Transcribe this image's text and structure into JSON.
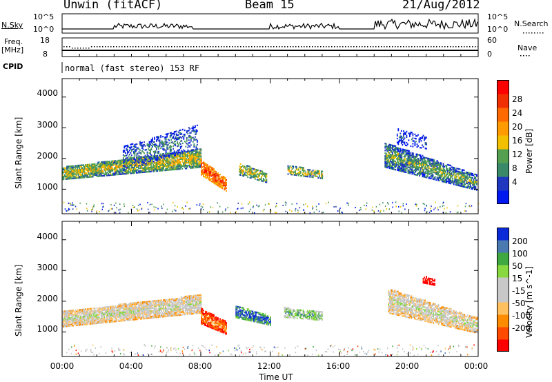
{
  "header": {
    "station": "Unwin (fitACF)",
    "beam": "Beam 15",
    "date": "21/Aug/2012"
  },
  "summary_panels": {
    "nsky_label": "N.Sky",
    "nsky_ticks": [
      "10^5",
      "10^0"
    ],
    "nsearch_label": "N.Search",
    "nsearch_ticks": [
      "10^5",
      "10^0"
    ],
    "freq_label": "Freq.",
    "freq_unit": "[MHz]",
    "freq_ticks": [
      "18",
      "8"
    ],
    "nave_label": "Nave",
    "nave_ticks": [
      "60",
      "0"
    ],
    "cpid_label": "CPID",
    "cpid_text": "normal (fast stereo) 153 RF"
  },
  "colors": {
    "power": [
      "#0018f0",
      "#2038c0",
      "#3a8a6a",
      "#54a050",
      "#f2c000",
      "#ff9a00",
      "#ff6a00",
      "#f03000",
      "#ff0000"
    ],
    "velocity": [
      "#ff0000",
      "#ff4a00",
      "#ff8c00",
      "#ffc060",
      "#c8c8c8",
      "#c8c8c8",
      "#88d840",
      "#40a840",
      "#4a7ab0",
      "#0a2ad8"
    ],
    "gray": "#c0c0c0"
  },
  "chart_data": [
    {
      "type": "heatmap",
      "parameter": "Power",
      "ylabel": "Slant Range [km]",
      "xlabel": "Time UT",
      "xlim": [
        0,
        24
      ],
      "ylim": [
        200,
        4600
      ],
      "x_ticks": [
        "00:00",
        "04:00",
        "08:00",
        "12:00",
        "16:00",
        "20:00",
        "00:00"
      ],
      "y_ticks": [
        "1000",
        "2000",
        "3000",
        "4000"
      ],
      "colorbar": {
        "label": "Power [dB]",
        "ticks": [
          "4",
          "8",
          "12",
          "16",
          "20",
          "24",
          "28"
        ]
      },
      "regions": [
        {
          "t": [
            0.0,
            8.0
          ],
          "r_center": [
            1500,
            2000
          ],
          "halfwidth": [
            200,
            300
          ],
          "density": 0.85,
          "core": 4
        },
        {
          "t": [
            3.5,
            7.8
          ],
          "r_center": [
            2000,
            2700
          ],
          "halfwidth": [
            400,
            400
          ],
          "density": 0.35,
          "core": 2
        },
        {
          "t": [
            8.0,
            9.5
          ],
          "r_center": [
            1700,
            1100
          ],
          "halfwidth": [
            250,
            200
          ],
          "density": 0.85,
          "core": 7
        },
        {
          "t": [
            10.2,
            11.8
          ],
          "r_center": [
            1650,
            1350
          ],
          "halfwidth": [
            200,
            150
          ],
          "density": 0.6,
          "core": 4
        },
        {
          "t": [
            13.0,
            15.0
          ],
          "r_center": [
            1620,
            1450
          ],
          "halfwidth": [
            150,
            120
          ],
          "density": 0.65,
          "core": 4
        },
        {
          "t": [
            18.6,
            23.9
          ],
          "r_center": [
            2100,
            1200
          ],
          "halfwidth": [
            400,
            250
          ],
          "density": 0.75,
          "core": 3
        },
        {
          "t": [
            19.3,
            21.0
          ],
          "r_center": [
            2700,
            2500
          ],
          "halfwidth": [
            250,
            200
          ],
          "density": 0.3,
          "core": 1
        }
      ]
    },
    {
      "type": "heatmap",
      "parameter": "Velocity",
      "ylabel": "Slant Range [km]",
      "xlabel": "Time UT",
      "xlim": [
        0,
        24
      ],
      "ylim": [
        200,
        4600
      ],
      "x_ticks": [
        "00:00",
        "04:00",
        "08:00",
        "12:00",
        "16:00",
        "20:00",
        "00:00"
      ],
      "y_ticks": [
        "1000",
        "2000",
        "3000",
        "4000"
      ],
      "colorbar": {
        "label": "Velocity [m s^-1]",
        "ticks": [
          "200",
          "100",
          "50",
          "15",
          "-15",
          "-50",
          "-100",
          "-200"
        ]
      },
      "regions": [
        {
          "t": [
            0.0,
            8.0
          ],
          "r_center": [
            1400,
            1900
          ],
          "halfwidth": [
            250,
            300
          ],
          "density": 0.85,
          "core": 5
        },
        {
          "t": [
            8.0,
            9.5
          ],
          "r_center": [
            1500,
            1100
          ],
          "halfwidth": [
            250,
            200
          ],
          "density": 0.85,
          "core": 2
        },
        {
          "t": [
            10.0,
            12.0
          ],
          "r_center": [
            1650,
            1350
          ],
          "halfwidth": [
            200,
            150
          ],
          "density": 0.8,
          "core": 9
        },
        {
          "t": [
            12.8,
            15.0
          ],
          "r_center": [
            1620,
            1500
          ],
          "halfwidth": [
            160,
            140
          ],
          "density": 0.75,
          "core": 7
        },
        {
          "t": [
            18.8,
            23.9
          ],
          "r_center": [
            2000,
            1200
          ],
          "halfwidth": [
            400,
            250
          ],
          "density": 0.75,
          "core": 5
        },
        {
          "t": [
            20.8,
            21.5
          ],
          "r_center": [
            2700,
            2600
          ],
          "halfwidth": [
            120,
            100
          ],
          "density": 0.7,
          "core": 0
        }
      ]
    }
  ]
}
